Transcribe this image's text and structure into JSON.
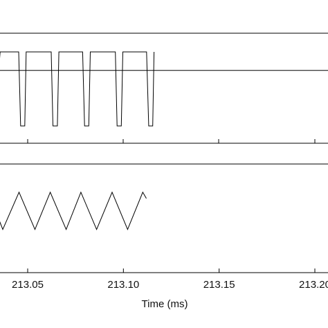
{
  "chart_data": [
    {
      "type": "line",
      "title": "",
      "ylabel": "",
      "x": [
        213.026,
        213.0296,
        213.0319,
        213.0327,
        213.0356,
        213.0453,
        213.0463,
        213.0485,
        213.0492,
        213.0521,
        213.0623,
        213.0632,
        213.0655,
        213.0663,
        213.069,
        213.0787,
        213.0797,
        213.0819,
        213.0827,
        213.0856,
        213.0958,
        213.0967,
        213.0989,
        213.0997,
        213.1024,
        213.1121,
        213.1132,
        213.1153,
        213.116
      ],
      "series": [
        {
          "values": [
            1.0,
            1.0,
            -1.0,
            -1.0,
            1.0,
            1.0,
            -1.0,
            -1.0,
            1.0,
            1.0,
            1.0,
            -1.0,
            -1.0,
            1.0,
            1.0,
            1.0,
            -1.0,
            -1.0,
            1.0,
            1.0,
            1.0,
            -1.0,
            -1.0,
            1.0,
            1.0,
            1.0,
            -1.0,
            -1.0,
            1.0
          ]
        }
      ],
      "reference_lines": [
        0.5
      ],
      "grid": false,
      "legend": "none"
    },
    {
      "type": "line",
      "title": "",
      "ylabel": "",
      "x": [
        213.026,
        213.0295,
        213.037,
        213.0455,
        213.0538,
        213.0618,
        213.0701,
        213.0778,
        213.086,
        213.0941,
        213.1022,
        213.1101,
        213.112
      ],
      "series": [
        {
          "values": [
            0.75,
            0.97,
            -0.95,
            0.97,
            -0.95,
            0.97,
            -0.95,
            0.97,
            -0.95,
            0.97,
            -0.95,
            0.97,
            0.65
          ]
        }
      ],
      "grid": false,
      "legend": "none"
    }
  ],
  "x_axis": {
    "label": "Time (ms)",
    "ticks": [
      "213.05",
      "213.10",
      "213.15",
      "213.20"
    ],
    "tick_values": [
      213.05,
      213.1,
      213.15,
      213.2
    ],
    "range": [
      213.032,
      213.203
    ]
  }
}
